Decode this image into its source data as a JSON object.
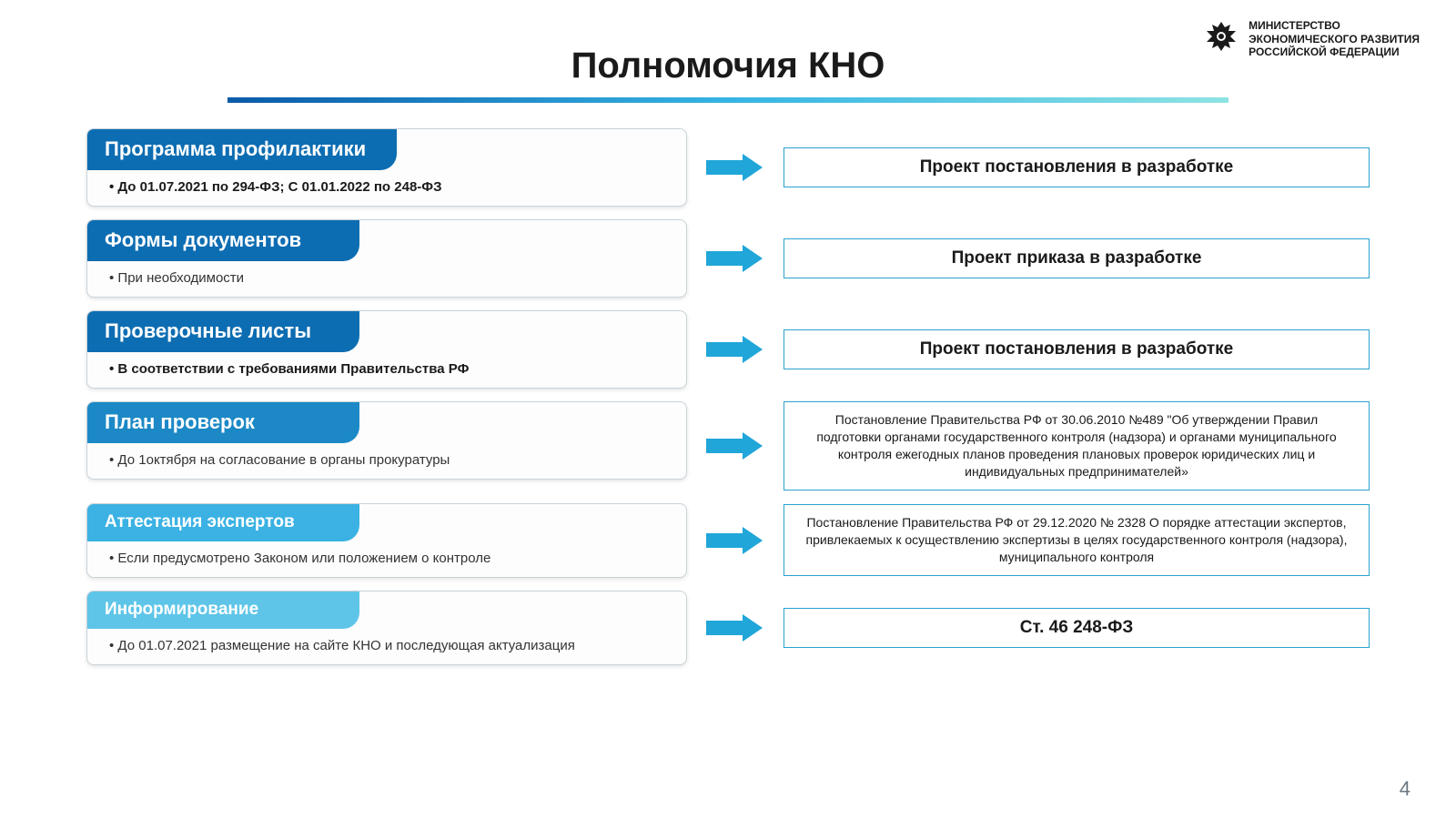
{
  "header": {
    "ministry_line1": "МИНИСТЕРСТВО",
    "ministry_line2": "ЭКОНОМИЧЕСКОГО РАЗВИТИЯ",
    "ministry_line3": "РОССИЙСКОЙ ФЕДЕРАЦИИ"
  },
  "title": "Полномочия КНО",
  "page_number": "4",
  "colors": {
    "tab_strong": "#0d6db2",
    "tab_mid": "#1c89c6",
    "tab_light": "#3bb2e3",
    "tab_lighter": "#5ec5e8",
    "arrow": "#20a6d9",
    "right_border": "#2aa2cf",
    "underline_start": "#0a5aa8",
    "underline_mid": "#35b4e4",
    "underline_end": "#8de3e3"
  },
  "rows": [
    {
      "tab": "Программа профилактики",
      "tab_color": "#0d6db2",
      "tab_fontsize": "22px",
      "bullet": "• До 01.07.2021 по 294-ФЗ; С 01.01.2022 по 248-ФЗ",
      "bullet_bold": true,
      "right": "Проект постановления в разработке",
      "right_bold": true,
      "right_small": false
    },
    {
      "tab": "Формы документов",
      "tab_color": "#0d6db2",
      "tab_fontsize": "22px",
      "bullet": "• При необходимости",
      "bullet_bold": false,
      "right": "Проект приказа в разработке",
      "right_bold": true,
      "right_small": false
    },
    {
      "tab": "Проверочные листы",
      "tab_color": "#0d6db2",
      "tab_fontsize": "22px",
      "bullet": "• В соответствии с требованиями Правительства РФ",
      "bullet_bold": true,
      "right": "Проект постановления в разработке",
      "right_bold": true,
      "right_small": false
    },
    {
      "tab": "План проверок",
      "tab_color": "#1c89c6",
      "tab_fontsize": "22px",
      "bullet": "• До 1октября на согласование в органы прокуратуры",
      "bullet_bold": false,
      "right": "Постановление Правительства РФ от 30.06.2010 №489 \"Об утверждении Правил подготовки органами государственного контроля (надзора) и органами муниципального контроля ежегодных планов проведения плановых проверок юридических лиц и индивидуальных предпринимателей»",
      "right_bold": false,
      "right_small": true
    },
    {
      "tab": "Аттестация экспертов",
      "tab_color": "#3bb2e3",
      "tab_fontsize": "19px",
      "bullet": "• Если предусмотрено Законом или положением о контроле",
      "bullet_bold": false,
      "right": "Постановление Правительства РФ от 29.12.2020 № 2328 О порядке аттестации экспертов, привлекаемых к осуществлению экспертизы в целях государственного контроля (надзора), муниципального контроля",
      "right_bold": false,
      "right_small": true
    },
    {
      "tab": "Информирование",
      "tab_color": "#5ec5e8",
      "tab_fontsize": "19px",
      "bullet": "• До 01.07.2021 размещение на сайте КНО и последующая актуализация",
      "bullet_bold": false,
      "right": "Ст. 46  248-ФЗ",
      "right_bold": true,
      "right_small": false
    }
  ]
}
